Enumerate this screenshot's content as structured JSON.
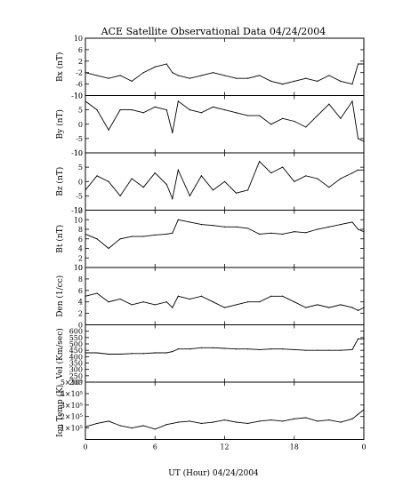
{
  "title": "ACE Satellite Observational Data   04/24/2004",
  "xlabel": "UT (Hour)   04/24/2004",
  "x_ticks": [
    "0",
    "6",
    "12",
    "18",
    "0"
  ],
  "chart_data": [
    {
      "type": "line",
      "ylabel": "Bx (nT)",
      "ylim": [
        -10,
        10
      ],
      "ytick_values": [
        -10,
        -6,
        -2,
        2,
        6,
        10
      ],
      "ytick_labels": [
        "-10",
        "-6",
        "-2",
        "2",
        "6",
        "10"
      ],
      "x": [
        0,
        1,
        2,
        3,
        4,
        5,
        6,
        7,
        7.5,
        8,
        9,
        10,
        11,
        12,
        13,
        14,
        15,
        16,
        17,
        18,
        19,
        20,
        21,
        22,
        23,
        23.5,
        24
      ],
      "y": [
        -2,
        -3,
        -4,
        -3,
        -5,
        -2,
        0,
        1,
        -2,
        -3,
        -4,
        -3,
        -2,
        -3,
        -4,
        -4,
        -3,
        -5,
        -6,
        -5,
        -4,
        -5,
        -3,
        -5,
        -6,
        1,
        1
      ]
    },
    {
      "type": "line",
      "ylabel": "By (nT)",
      "ylim": [
        -10,
        10
      ],
      "ytick_values": [
        -10,
        -5,
        0,
        5,
        10
      ],
      "ytick_labels": [
        "-10",
        "-5",
        "0",
        "5",
        "10"
      ],
      "x": [
        0,
        1,
        2,
        3,
        4,
        5,
        6,
        7,
        7.5,
        8,
        9,
        10,
        11,
        12,
        13,
        14,
        15,
        16,
        17,
        18,
        19,
        20,
        21,
        22,
        23,
        23.5,
        24
      ],
      "y": [
        8,
        5,
        -2,
        5,
        5,
        4,
        6,
        5,
        -3,
        8,
        5,
        4,
        6,
        5,
        4,
        3,
        3,
        0,
        2,
        1,
        -1,
        3,
        7,
        2,
        8,
        -5,
        -6
      ]
    },
    {
      "type": "line",
      "ylabel": "Bz (nT)",
      "ylim": [
        -10,
        10
      ],
      "ytick_values": [
        -10,
        -5,
        0,
        5,
        10
      ],
      "ytick_labels": [
        "-10",
        "-5",
        "0",
        "5",
        "10"
      ],
      "x": [
        0,
        1,
        2,
        3,
        4,
        5,
        6,
        7,
        7.5,
        8,
        9,
        10,
        11,
        12,
        13,
        14,
        15,
        16,
        17,
        18,
        19,
        20,
        21,
        22,
        23,
        23.5,
        24
      ],
      "y": [
        -3,
        2,
        0,
        -5,
        1,
        -2,
        3,
        -1,
        -6,
        4,
        -5,
        2,
        -3,
        0,
        -4,
        -3,
        7,
        3,
        5,
        0,
        2,
        1,
        -2,
        1,
        3,
        4,
        4
      ]
    },
    {
      "type": "line",
      "ylabel": "Bt (nT)",
      "ylim": [
        0,
        12
      ],
      "ytick_values": [
        0,
        2,
        4,
        6,
        8,
        10,
        12
      ],
      "ytick_labels": [
        "0",
        "2",
        "4",
        "6",
        "8",
        "10",
        "12"
      ],
      "x": [
        0,
        1,
        2,
        3,
        4,
        5,
        6,
        7,
        7.5,
        8,
        9,
        10,
        11,
        12,
        13,
        14,
        15,
        16,
        17,
        18,
        19,
        20,
        21,
        22,
        23,
        23.5,
        24
      ],
      "y": [
        7,
        6,
        4,
        6,
        6.5,
        6.5,
        6.8,
        7,
        7.2,
        10,
        9.5,
        9,
        8.8,
        8.5,
        8.5,
        8.2,
        7,
        7.2,
        7,
        7.5,
        7.3,
        8,
        8.5,
        9,
        9.5,
        8,
        7.5
      ]
    },
    {
      "type": "line",
      "ylabel": "Den (1/cc)",
      "ylim": [
        0,
        10
      ],
      "ytick_values": [
        0,
        2,
        4,
        6,
        8,
        10
      ],
      "ytick_labels": [
        "0",
        "2",
        "4",
        "6",
        "8",
        "10"
      ],
      "x": [
        0,
        1,
        2,
        3,
        4,
        5,
        6,
        7,
        7.5,
        8,
        9,
        10,
        11,
        12,
        13,
        14,
        15,
        16,
        17,
        18,
        19,
        20,
        21,
        22,
        23,
        23.5,
        24
      ],
      "y": [
        5,
        5.5,
        4,
        4.5,
        3.5,
        4,
        3.5,
        4,
        3,
        5,
        4.5,
        5,
        4,
        3,
        3.5,
        4,
        4,
        5,
        5,
        4,
        3,
        3.5,
        3,
        3.5,
        3,
        2.5,
        3
      ]
    },
    {
      "type": "line",
      "ylabel": "Vel (Km/sec)",
      "ylim": [
        200,
        650
      ],
      "ytick_values": [
        200,
        250,
        300,
        350,
        400,
        450,
        500,
        550,
        600
      ],
      "ytick_labels": [
        "200",
        "250",
        "300",
        "350",
        "400",
        "450",
        "500",
        "550",
        "600"
      ],
      "x": [
        0,
        1,
        2,
        3,
        4,
        5,
        6,
        7,
        7.5,
        8,
        9,
        10,
        11,
        12,
        13,
        14,
        15,
        16,
        17,
        18,
        19,
        20,
        21,
        22,
        23,
        23.5,
        24
      ],
      "y": [
        430,
        430,
        420,
        420,
        425,
        425,
        430,
        430,
        440,
        460,
        460,
        470,
        470,
        465,
        460,
        460,
        455,
        460,
        460,
        455,
        450,
        450,
        450,
        450,
        455,
        540,
        540
      ]
    },
    {
      "type": "line",
      "ylabel": "Ion Temp (K)",
      "ylim": [
        0,
        500000
      ],
      "ytick_values": [
        100000,
        200000,
        300000,
        400000,
        500000
      ],
      "ytick_labels": [
        "1×10⁵",
        "2×10⁵",
        "3×10⁵",
        "4×10⁵",
        "5×10⁵"
      ],
      "x": [
        0,
        1,
        2,
        3,
        4,
        5,
        6,
        7,
        7.5,
        8,
        9,
        10,
        11,
        12,
        13,
        14,
        15,
        16,
        17,
        18,
        19,
        20,
        21,
        22,
        23,
        23.5,
        24
      ],
      "y": [
        110000,
        140000,
        160000,
        120000,
        100000,
        120000,
        90000,
        130000,
        140000,
        150000,
        160000,
        140000,
        150000,
        170000,
        150000,
        140000,
        160000,
        170000,
        160000,
        180000,
        190000,
        160000,
        170000,
        150000,
        180000,
        220000,
        260000
      ]
    }
  ]
}
